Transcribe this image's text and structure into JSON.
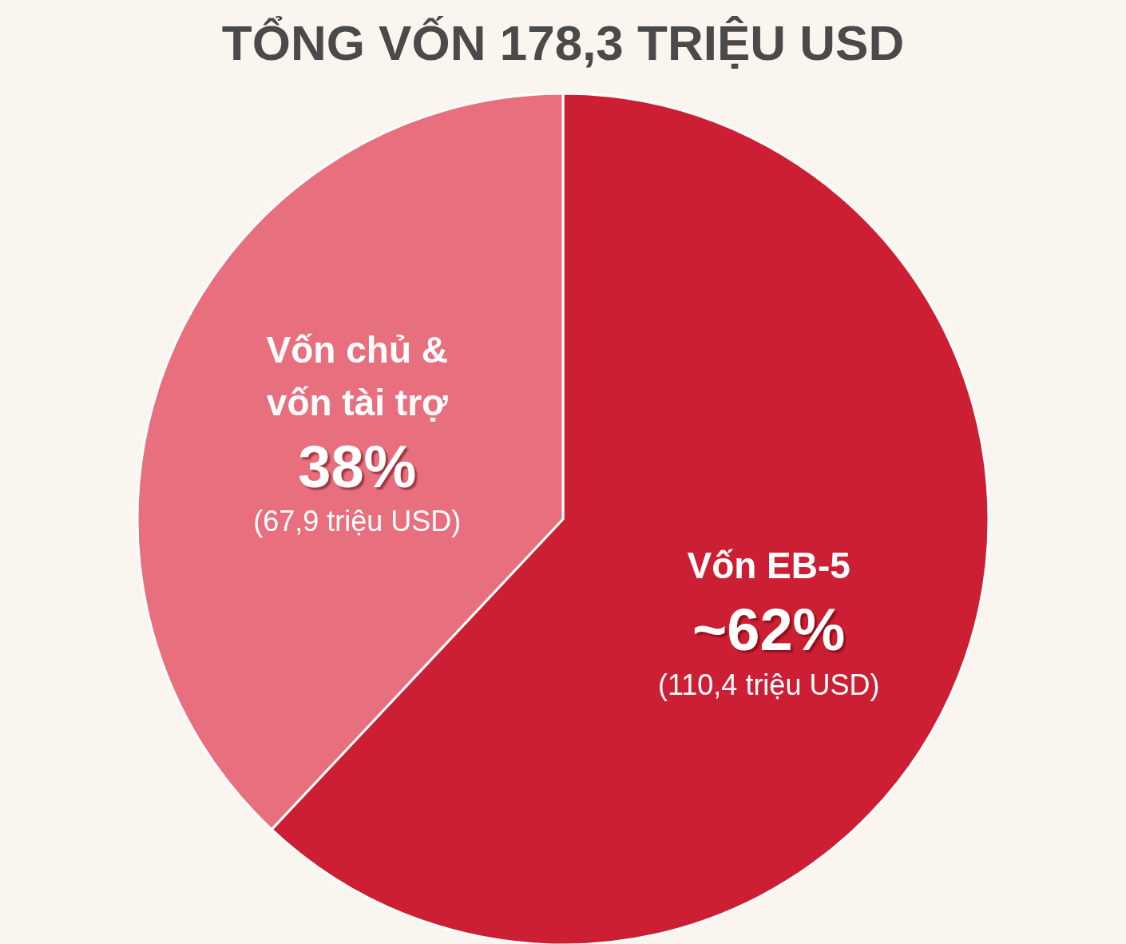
{
  "chart_data": {
    "type": "pie",
    "title": "TỔNG VỐN 178,3 TRIỆU USD",
    "categories": [
      "Vốn EB-5",
      "Vốn chủ & vốn tài trợ"
    ],
    "values": [
      62,
      38
    ],
    "colors": [
      "#cc1f33",
      "#e8707e"
    ],
    "value_labels": [
      "~62%",
      "38%"
    ],
    "annotations": [
      "(110,4 triệu USD)",
      "(67,9 triệu USD)"
    ],
    "legend": false
  }
}
